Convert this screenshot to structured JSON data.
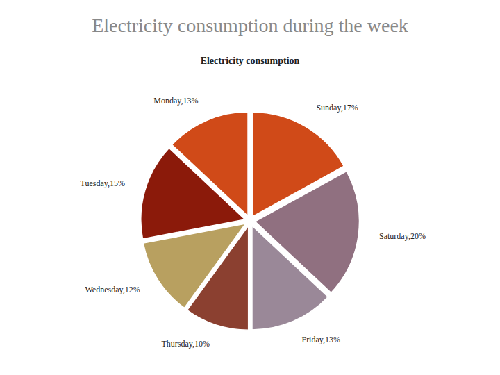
{
  "chart_data": {
    "type": "pie",
    "title": "Electricity consumption during the week",
    "subtitle": "Electricity consumption",
    "values": [
      13,
      15,
      12,
      10,
      13,
      20,
      17
    ],
    "value_labels": [
      "Monday,13%",
      "Tuesday,15%",
      "Wednesday,12%",
      "Thursday,10%",
      "Friday,13%",
      "Saturday,20%",
      "Sunday,17%"
    ],
    "colors": [
      "#D04A18",
      "#8B1A0A",
      "#B8A060",
      "#8B4030",
      "#9A8898",
      "#907080",
      "#D04A18"
    ],
    "data_labels": true
  }
}
